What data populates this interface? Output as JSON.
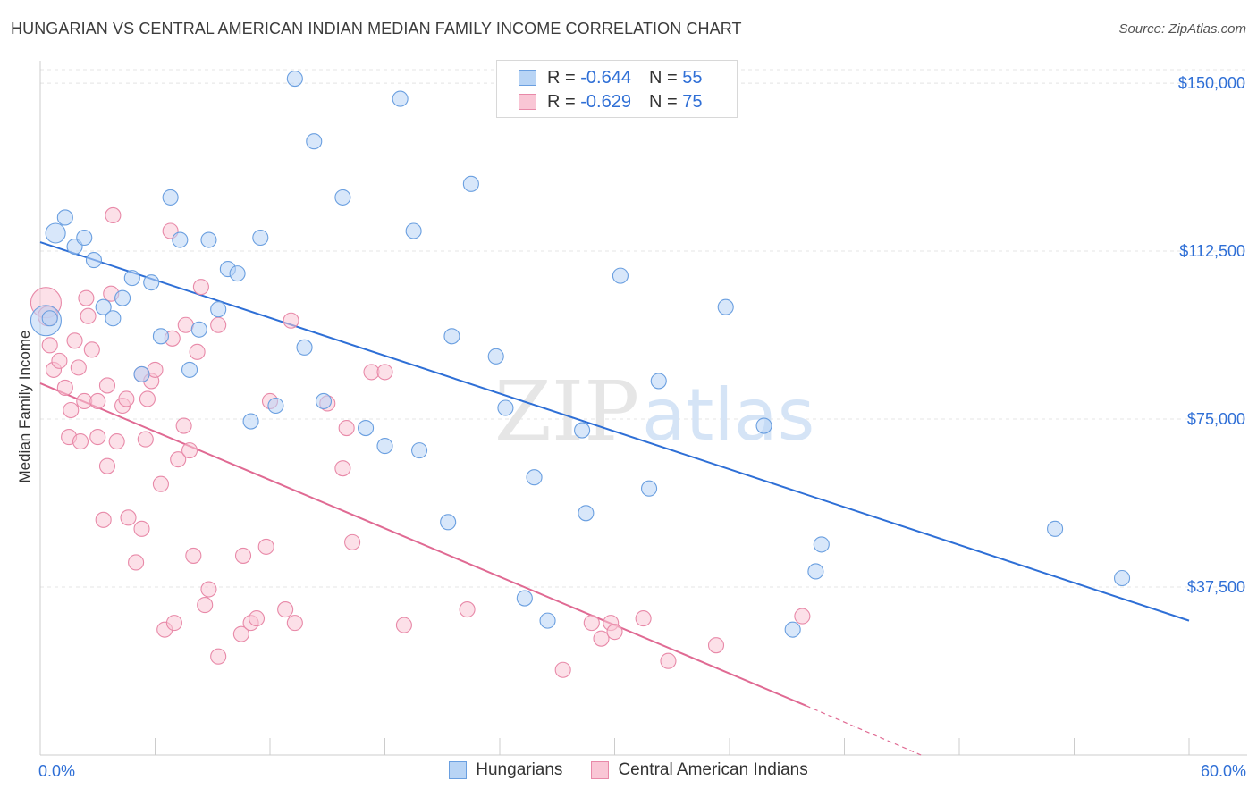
{
  "header": {
    "title": "HUNGARIAN VS CENTRAL AMERICAN INDIAN MEDIAN FAMILY INCOME CORRELATION CHART",
    "source": "Source: ZipAtlas.com"
  },
  "watermark": {
    "part1": "ZIP",
    "part2": "atlas"
  },
  "stats_box": {
    "rows": [
      {
        "r_label": "R =",
        "r_value": "-0.644",
        "n_label": "N =",
        "n_value": "55"
      },
      {
        "r_label": "R =",
        "r_value": "-0.629",
        "n_label": "N =",
        "n_value": "75"
      }
    ]
  },
  "colors": {
    "hungarians_fill": "#b8d4f5",
    "hungarians_stroke": "#6a9fe0",
    "hungarians_line": "#2e6fd6",
    "cai_fill": "#f9c6d5",
    "cai_stroke": "#e889a8",
    "cai_line": "#e06a93",
    "axis_text": "#2f6fd6",
    "grid": "#e4e4e4"
  },
  "chart_data": {
    "type": "scatter",
    "title": "HUNGARIAN VS CENTRAL AMERICAN INDIAN MEDIAN FAMILY INCOME CORRELATION CHART",
    "xlabel": "",
    "ylabel": "Median Family Income",
    "xlim": [
      0,
      60
    ],
    "ylim": [
      0,
      155000
    ],
    "x_tick_labels": [
      "0.0%",
      "60.0%"
    ],
    "y_ticks": [
      37500,
      75000,
      112500,
      150000
    ],
    "y_tick_labels": [
      "$37,500",
      "$75,000",
      "$112,500",
      "$150,000"
    ],
    "grid": true,
    "legend_position": "bottom-center",
    "series": [
      {
        "name": "Hungarians",
        "r": -0.644,
        "n": 55,
        "trend": {
          "x": [
            0,
            60
          ],
          "y": [
            114500,
            30000
          ]
        },
        "points": [
          [
            0.3,
            97000
          ],
          [
            0.8,
            116500
          ],
          [
            1.3,
            120000
          ],
          [
            1.8,
            113500
          ],
          [
            2.3,
            115500
          ],
          [
            2.8,
            110500
          ],
          [
            3.3,
            100000
          ],
          [
            3.8,
            97500
          ],
          [
            4.3,
            102000
          ],
          [
            4.8,
            106500
          ],
          [
            5.3,
            85000
          ],
          [
            5.8,
            105500
          ],
          [
            6.3,
            93500
          ],
          [
            6.8,
            124500
          ],
          [
            7.3,
            115000
          ],
          [
            7.8,
            86000
          ],
          [
            8.3,
            95000
          ],
          [
            8.8,
            115000
          ],
          [
            9.3,
            99500
          ],
          [
            9.8,
            108500
          ],
          [
            10.3,
            107500
          ],
          [
            11.0,
            74500
          ],
          [
            11.5,
            115500
          ],
          [
            12.3,
            78000
          ],
          [
            13.3,
            151000
          ],
          [
            13.8,
            91000
          ],
          [
            14.3,
            137000
          ],
          [
            14.8,
            79000
          ],
          [
            15.8,
            124500
          ],
          [
            17.0,
            73000
          ],
          [
            18.0,
            69000
          ],
          [
            18.8,
            146500
          ],
          [
            19.5,
            117000
          ],
          [
            19.8,
            68000
          ],
          [
            21.3,
            52000
          ],
          [
            21.5,
            93500
          ],
          [
            22.5,
            127500
          ],
          [
            23.8,
            89000
          ],
          [
            24.3,
            77500
          ],
          [
            25.8,
            62000
          ],
          [
            25.3,
            35000
          ],
          [
            26.5,
            30000
          ],
          [
            28.3,
            72500
          ],
          [
            28.5,
            54000
          ],
          [
            30.3,
            107000
          ],
          [
            31.8,
            59500
          ],
          [
            32.3,
            83500
          ],
          [
            35.8,
            100000
          ],
          [
            37.8,
            73500
          ],
          [
            39.3,
            28000
          ],
          [
            40.5,
            41000
          ],
          [
            40.8,
            47000
          ],
          [
            53.0,
            50500
          ],
          [
            56.5,
            39500
          ],
          [
            0.5,
            97500
          ]
        ]
      },
      {
        "name": "Central American Indians",
        "r": -0.629,
        "n": 75,
        "trend": {
          "x": [
            0,
            40
          ],
          "y": [
            83000,
            11000
          ]
        },
        "trend_dashed": {
          "x": [
            40,
            46
          ],
          "y": [
            11000,
            0
          ]
        },
        "points": [
          [
            0.3,
            101000
          ],
          [
            0.4,
            98000
          ],
          [
            0.5,
            91500
          ],
          [
            0.7,
            86000
          ],
          [
            1.0,
            88000
          ],
          [
            1.3,
            82000
          ],
          [
            1.5,
            71000
          ],
          [
            1.6,
            77000
          ],
          [
            1.8,
            92500
          ],
          [
            2.0,
            86500
          ],
          [
            2.1,
            70000
          ],
          [
            2.3,
            79000
          ],
          [
            2.4,
            102000
          ],
          [
            2.5,
            98000
          ],
          [
            2.7,
            90500
          ],
          [
            3.0,
            71000
          ],
          [
            3.0,
            79000
          ],
          [
            3.3,
            52500
          ],
          [
            3.5,
            82500
          ],
          [
            3.5,
            64500
          ],
          [
            3.7,
            103000
          ],
          [
            3.8,
            120500
          ],
          [
            4.0,
            70000
          ],
          [
            4.3,
            78000
          ],
          [
            4.5,
            79500
          ],
          [
            4.6,
            53000
          ],
          [
            5.0,
            43000
          ],
          [
            5.3,
            85000
          ],
          [
            5.3,
            50500
          ],
          [
            5.5,
            70500
          ],
          [
            5.6,
            79500
          ],
          [
            5.8,
            83500
          ],
          [
            6.0,
            86000
          ],
          [
            6.3,
            60500
          ],
          [
            6.5,
            28000
          ],
          [
            6.8,
            117000
          ],
          [
            6.9,
            93000
          ],
          [
            7.0,
            29500
          ],
          [
            7.2,
            66000
          ],
          [
            7.5,
            73500
          ],
          [
            7.6,
            96000
          ],
          [
            7.8,
            68000
          ],
          [
            8.0,
            44500
          ],
          [
            8.2,
            90000
          ],
          [
            8.4,
            104500
          ],
          [
            8.6,
            33500
          ],
          [
            8.8,
            37000
          ],
          [
            9.3,
            96000
          ],
          [
            9.3,
            22000
          ],
          [
            10.5,
            27000
          ],
          [
            10.6,
            44500
          ],
          [
            11.0,
            29500
          ],
          [
            11.3,
            30500
          ],
          [
            11.8,
            46500
          ],
          [
            12.0,
            79000
          ],
          [
            12.8,
            32500
          ],
          [
            13.1,
            97000
          ],
          [
            13.3,
            29500
          ],
          [
            15.0,
            78500
          ],
          [
            15.8,
            64000
          ],
          [
            16.0,
            73000
          ],
          [
            16.3,
            47500
          ],
          [
            17.3,
            85500
          ],
          [
            18.0,
            85500
          ],
          [
            19.0,
            29000
          ],
          [
            22.3,
            32500
          ],
          [
            27.3,
            19000
          ],
          [
            28.8,
            29500
          ],
          [
            29.3,
            26000
          ],
          [
            29.8,
            29500
          ],
          [
            30.0,
            27500
          ],
          [
            31.5,
            30500
          ],
          [
            32.8,
            21000
          ],
          [
            35.3,
            24500
          ],
          [
            39.8,
            31000
          ]
        ]
      }
    ]
  },
  "legend": {
    "items": [
      {
        "label": "Hungarians"
      },
      {
        "label": "Central American Indians"
      }
    ]
  }
}
